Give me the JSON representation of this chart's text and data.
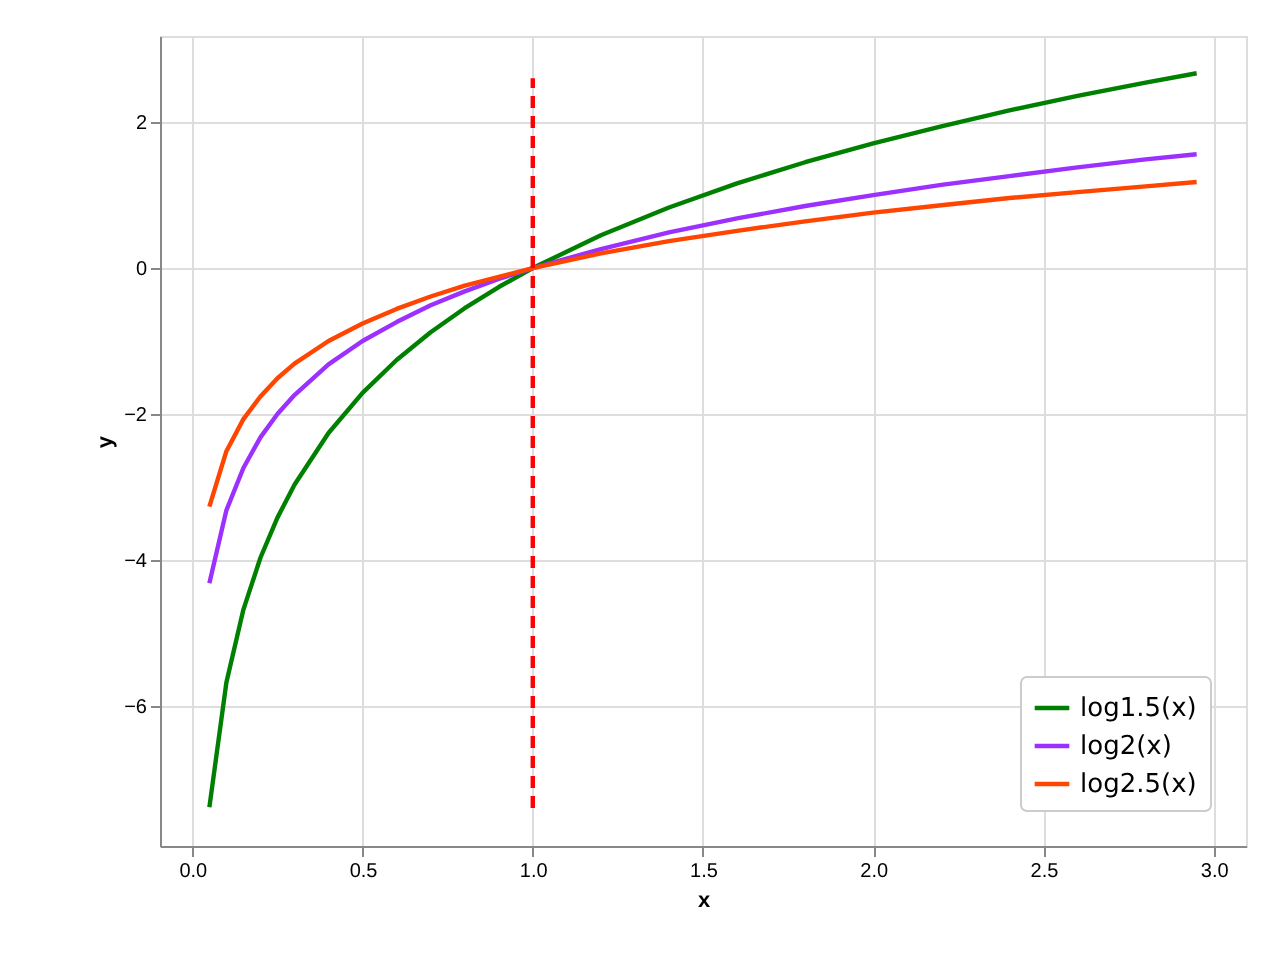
{
  "chart_data": {
    "type": "line",
    "xlabel": "x",
    "ylabel": "y",
    "x": [
      0.05,
      0.1,
      0.15,
      0.2,
      0.25,
      0.3,
      0.4,
      0.5,
      0.6,
      0.7,
      0.8,
      0.9,
      1.0,
      1.2,
      1.4,
      1.6,
      1.8,
      2.0,
      2.2,
      2.4,
      2.6,
      2.8,
      2.95
    ],
    "series": [
      {
        "name": "log1.5(x)",
        "color": "#008000",
        "values": [
          -7.39,
          -5.68,
          -4.68,
          -3.97,
          -3.42,
          -2.97,
          -2.26,
          -1.71,
          -1.26,
          -0.88,
          -0.55,
          -0.26,
          0,
          0.45,
          0.83,
          1.16,
          1.45,
          1.71,
          1.94,
          2.16,
          2.36,
          2.54,
          2.67
        ]
      },
      {
        "name": "log2(x)",
        "color": "#9b30ff",
        "values": [
          -4.32,
          -3.32,
          -2.74,
          -2.32,
          -2.0,
          -1.74,
          -1.32,
          -1.0,
          -0.74,
          -0.51,
          -0.32,
          -0.15,
          0,
          0.26,
          0.49,
          0.68,
          0.85,
          1.0,
          1.14,
          1.26,
          1.38,
          1.49,
          1.56
        ]
      },
      {
        "name": "log2.5(x)",
        "color": "#ff4500",
        "values": [
          -3.27,
          -2.51,
          -2.07,
          -1.76,
          -1.51,
          -1.31,
          -1.0,
          -0.76,
          -0.56,
          -0.39,
          -0.24,
          -0.12,
          0,
          0.2,
          0.37,
          0.51,
          0.64,
          0.76,
          0.86,
          0.96,
          1.04,
          1.12,
          1.18
        ]
      },
      {
        "type": "line",
        "color": "#ff0000",
        "line_style": "dashed",
        "x": [
          1.0,
          1.0
        ],
        "values": [
          -7.4,
          2.6
        ]
      }
    ],
    "xlim": [
      -0.095,
      3.095
    ],
    "ylim": [
      -7.92,
      3.18
    ],
    "xticks": [
      {
        "value": 0,
        "label": "0.0"
      },
      0.5,
      {
        "value": 1,
        "label": "1.0"
      },
      1.5,
      {
        "value": 2,
        "label": "2.0"
      },
      2.5,
      {
        "value": 3,
        "label": "3.0"
      }
    ],
    "yticks": [
      {
        "value": -6,
        "label": "−6"
      },
      {
        "value": -4,
        "label": "−4"
      },
      {
        "value": -2,
        "label": "−2"
      },
      0,
      2
    ],
    "grid": true,
    "legend": "bottom right",
    "line_style": "solid",
    "marker": "none"
  }
}
